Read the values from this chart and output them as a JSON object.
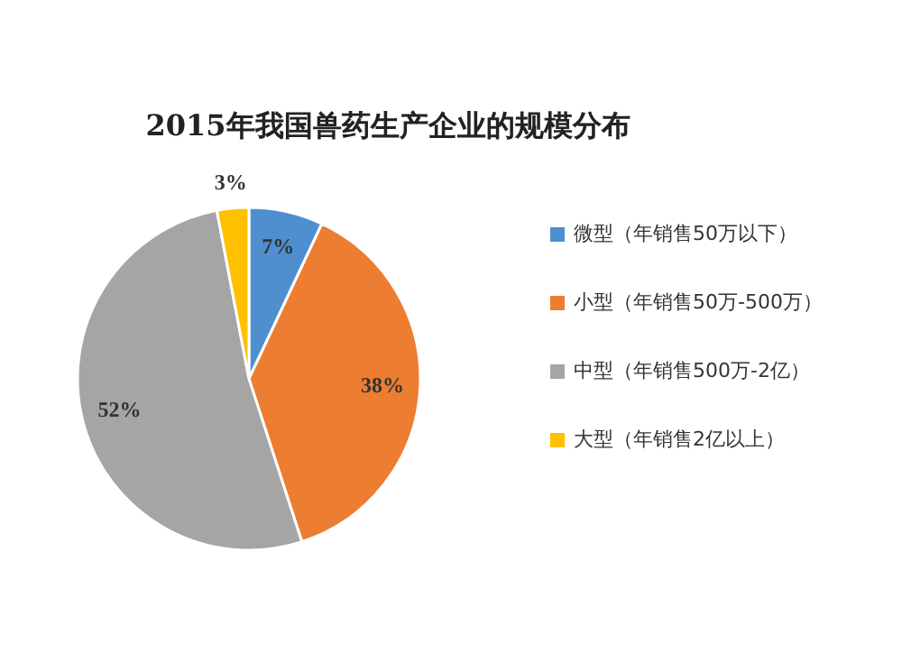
{
  "chart_data": {
    "type": "pie",
    "title": "2015年我国兽药生产企业的规模分布",
    "categories": [
      "微型（年销售50万以下）",
      "小型（年销售50万-500万）",
      "中型（年销售500万-2亿）",
      "大型（年销售2亿以上）"
    ],
    "values": [
      7,
      38,
      52,
      3
    ],
    "colors": [
      "#4f8fd0",
      "#ed7d31",
      "#a5a5a5",
      "#ffc000"
    ],
    "value_labels": [
      "7%",
      "38%",
      "52%",
      "3%"
    ],
    "legend": "right"
  }
}
